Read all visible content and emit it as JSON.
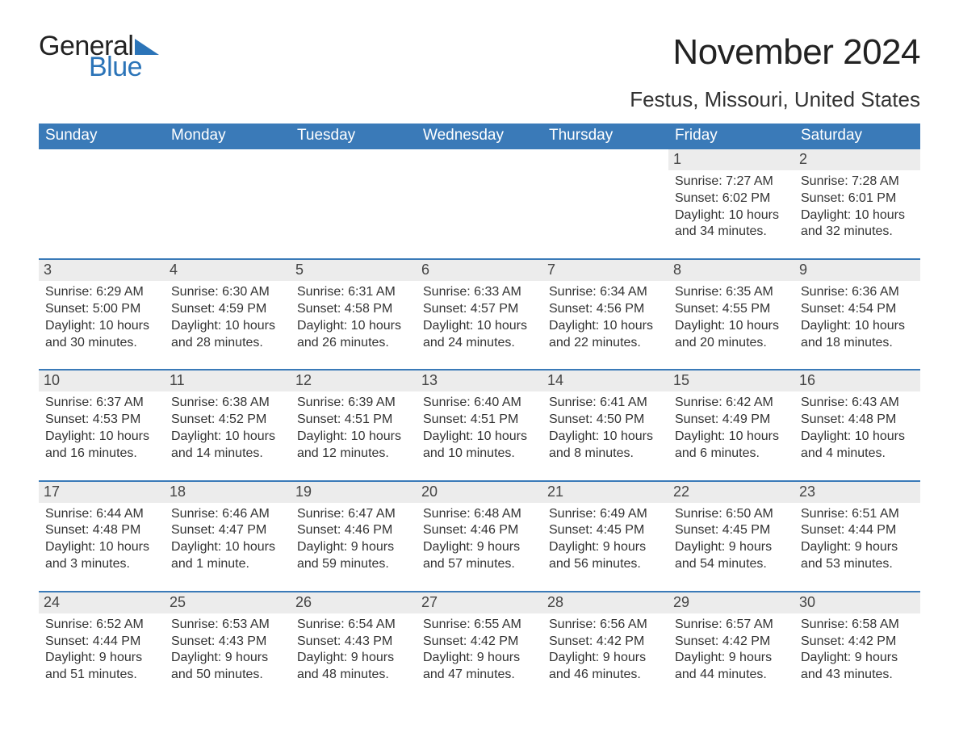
{
  "logo": {
    "word1": "General",
    "word2": "Blue",
    "triangle_color": "#2b74b8"
  },
  "title": "November 2024",
  "location": "Festus, Missouri, United States",
  "colors": {
    "header_bg": "#3a7ab8",
    "header_text": "#ffffff",
    "daynum_bg": "#ececec",
    "daynum_border": "#3a7ab8",
    "body_text": "#333333",
    "title_text": "#222222",
    "logo_blue": "#2b74b8"
  },
  "typography": {
    "title_fontsize_pt": 33,
    "location_fontsize_pt": 20,
    "header_fontsize_pt": 14,
    "daynum_fontsize_pt": 14,
    "body_fontsize_pt": 12,
    "font_family": "Arial"
  },
  "layout": {
    "columns": 7,
    "rows": 5,
    "first_day_column_index": 5
  },
  "weekdays": [
    "Sunday",
    "Monday",
    "Tuesday",
    "Wednesday",
    "Thursday",
    "Friday",
    "Saturday"
  ],
  "weeks": [
    [
      null,
      null,
      null,
      null,
      null,
      {
        "day": "1",
        "sunrise": "Sunrise: 7:27 AM",
        "sunset": "Sunset: 6:02 PM",
        "daylight": "Daylight: 10 hours and 34 minutes."
      },
      {
        "day": "2",
        "sunrise": "Sunrise: 7:28 AM",
        "sunset": "Sunset: 6:01 PM",
        "daylight": "Daylight: 10 hours and 32 minutes."
      }
    ],
    [
      {
        "day": "3",
        "sunrise": "Sunrise: 6:29 AM",
        "sunset": "Sunset: 5:00 PM",
        "daylight": "Daylight: 10 hours and 30 minutes."
      },
      {
        "day": "4",
        "sunrise": "Sunrise: 6:30 AM",
        "sunset": "Sunset: 4:59 PM",
        "daylight": "Daylight: 10 hours and 28 minutes."
      },
      {
        "day": "5",
        "sunrise": "Sunrise: 6:31 AM",
        "sunset": "Sunset: 4:58 PM",
        "daylight": "Daylight: 10 hours and 26 minutes."
      },
      {
        "day": "6",
        "sunrise": "Sunrise: 6:33 AM",
        "sunset": "Sunset: 4:57 PM",
        "daylight": "Daylight: 10 hours and 24 minutes."
      },
      {
        "day": "7",
        "sunrise": "Sunrise: 6:34 AM",
        "sunset": "Sunset: 4:56 PM",
        "daylight": "Daylight: 10 hours and 22 minutes."
      },
      {
        "day": "8",
        "sunrise": "Sunrise: 6:35 AM",
        "sunset": "Sunset: 4:55 PM",
        "daylight": "Daylight: 10 hours and 20 minutes."
      },
      {
        "day": "9",
        "sunrise": "Sunrise: 6:36 AM",
        "sunset": "Sunset: 4:54 PM",
        "daylight": "Daylight: 10 hours and 18 minutes."
      }
    ],
    [
      {
        "day": "10",
        "sunrise": "Sunrise: 6:37 AM",
        "sunset": "Sunset: 4:53 PM",
        "daylight": "Daylight: 10 hours and 16 minutes."
      },
      {
        "day": "11",
        "sunrise": "Sunrise: 6:38 AM",
        "sunset": "Sunset: 4:52 PM",
        "daylight": "Daylight: 10 hours and 14 minutes."
      },
      {
        "day": "12",
        "sunrise": "Sunrise: 6:39 AM",
        "sunset": "Sunset: 4:51 PM",
        "daylight": "Daylight: 10 hours and 12 minutes."
      },
      {
        "day": "13",
        "sunrise": "Sunrise: 6:40 AM",
        "sunset": "Sunset: 4:51 PM",
        "daylight": "Daylight: 10 hours and 10 minutes."
      },
      {
        "day": "14",
        "sunrise": "Sunrise: 6:41 AM",
        "sunset": "Sunset: 4:50 PM",
        "daylight": "Daylight: 10 hours and 8 minutes."
      },
      {
        "day": "15",
        "sunrise": "Sunrise: 6:42 AM",
        "sunset": "Sunset: 4:49 PM",
        "daylight": "Daylight: 10 hours and 6 minutes."
      },
      {
        "day": "16",
        "sunrise": "Sunrise: 6:43 AM",
        "sunset": "Sunset: 4:48 PM",
        "daylight": "Daylight: 10 hours and 4 minutes."
      }
    ],
    [
      {
        "day": "17",
        "sunrise": "Sunrise: 6:44 AM",
        "sunset": "Sunset: 4:48 PM",
        "daylight": "Daylight: 10 hours and 3 minutes."
      },
      {
        "day": "18",
        "sunrise": "Sunrise: 6:46 AM",
        "sunset": "Sunset: 4:47 PM",
        "daylight": "Daylight: 10 hours and 1 minute."
      },
      {
        "day": "19",
        "sunrise": "Sunrise: 6:47 AM",
        "sunset": "Sunset: 4:46 PM",
        "daylight": "Daylight: 9 hours and 59 minutes."
      },
      {
        "day": "20",
        "sunrise": "Sunrise: 6:48 AM",
        "sunset": "Sunset: 4:46 PM",
        "daylight": "Daylight: 9 hours and 57 minutes."
      },
      {
        "day": "21",
        "sunrise": "Sunrise: 6:49 AM",
        "sunset": "Sunset: 4:45 PM",
        "daylight": "Daylight: 9 hours and 56 minutes."
      },
      {
        "day": "22",
        "sunrise": "Sunrise: 6:50 AM",
        "sunset": "Sunset: 4:45 PM",
        "daylight": "Daylight: 9 hours and 54 minutes."
      },
      {
        "day": "23",
        "sunrise": "Sunrise: 6:51 AM",
        "sunset": "Sunset: 4:44 PM",
        "daylight": "Daylight: 9 hours and 53 minutes."
      }
    ],
    [
      {
        "day": "24",
        "sunrise": "Sunrise: 6:52 AM",
        "sunset": "Sunset: 4:44 PM",
        "daylight": "Daylight: 9 hours and 51 minutes."
      },
      {
        "day": "25",
        "sunrise": "Sunrise: 6:53 AM",
        "sunset": "Sunset: 4:43 PM",
        "daylight": "Daylight: 9 hours and 50 minutes."
      },
      {
        "day": "26",
        "sunrise": "Sunrise: 6:54 AM",
        "sunset": "Sunset: 4:43 PM",
        "daylight": "Daylight: 9 hours and 48 minutes."
      },
      {
        "day": "27",
        "sunrise": "Sunrise: 6:55 AM",
        "sunset": "Sunset: 4:42 PM",
        "daylight": "Daylight: 9 hours and 47 minutes."
      },
      {
        "day": "28",
        "sunrise": "Sunrise: 6:56 AM",
        "sunset": "Sunset: 4:42 PM",
        "daylight": "Daylight: 9 hours and 46 minutes."
      },
      {
        "day": "29",
        "sunrise": "Sunrise: 6:57 AM",
        "sunset": "Sunset: 4:42 PM",
        "daylight": "Daylight: 9 hours and 44 minutes."
      },
      {
        "day": "30",
        "sunrise": "Sunrise: 6:58 AM",
        "sunset": "Sunset: 4:42 PM",
        "daylight": "Daylight: 9 hours and 43 minutes."
      }
    ]
  ]
}
